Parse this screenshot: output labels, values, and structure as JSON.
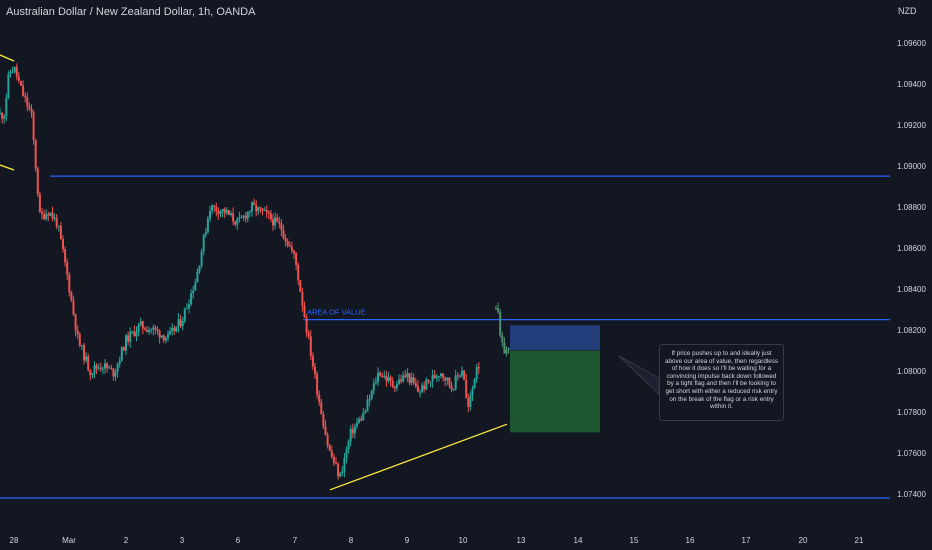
{
  "header": {
    "title": "Australian Dollar / New Zealand Dollar, 1h, OANDA",
    "currency": "NZD"
  },
  "colors": {
    "background": "#131722",
    "up_candle": "#26a69a",
    "down_candle": "#ef5350",
    "horizontal_line": "#2962ff",
    "trend_line": "#ffeb3b",
    "axis_text": "#d1d4dc",
    "target_zone": "#1e5631",
    "stop_zone": "#233d7b"
  },
  "annotations": {
    "area_label": "AREA OF VALUE",
    "note": "If price pushes up to and ideally just above our area of value, then regardless of how it does so I'll be waiting for a convincing impulse back down followed by a tight flag and then I'll be looking to get short with either a reduced risk entry on the break of the flag or a risk entry within it."
  },
  "chart_data": {
    "type": "candlestick",
    "title": "Australian Dollar / New Zealand Dollar, 1h, OANDA",
    "y_axis_label": "NZD",
    "y_ticks": [
      "1.09600",
      "1.09400",
      "1.09200",
      "1.09000",
      "1.08800",
      "1.08600",
      "1.08400",
      "1.08200",
      "1.08000",
      "1.07800",
      "1.07600",
      "1.07400"
    ],
    "ylim": [
      1.0728,
      1.0974
    ],
    "x_ticks": [
      "28",
      "Mar",
      "2",
      "3",
      "6",
      "7",
      "8",
      "9",
      "10",
      "13",
      "14",
      "15",
      "16",
      "17",
      "20",
      "21"
    ],
    "grid": false,
    "horizontal_levels": [
      1.0895,
      1.0825,
      1.0738
    ],
    "area_of_value": 1.0825,
    "trendline": {
      "from": {
        "x": "Mar 7",
        "y": 1.0742
      },
      "to": {
        "x": "Mar 10",
        "y": 1.0774
      }
    },
    "position_projection": {
      "entry": 1.081,
      "stop": 1.0822,
      "target": 1.077
    },
    "path": [
      [
        "Feb 27",
        1.0925
      ],
      [
        "Feb 27",
        1.0945
      ],
      [
        "Feb 28",
        1.0948
      ],
      [
        "Feb 28",
        1.0935
      ],
      [
        "Feb 28",
        1.0925
      ],
      [
        "Feb 28",
        1.0875
      ],
      [
        "Feb 28",
        1.0878
      ],
      [
        "Feb 28",
        1.0872
      ],
      [
        "Mar 1",
        1.085
      ],
      [
        "Mar 1",
        1.0815
      ],
      [
        "Mar 1",
        1.08
      ],
      [
        "Mar 1",
        1.0803
      ],
      [
        "Mar 1",
        1.0799
      ],
      [
        "Mar 2",
        1.0815
      ],
      [
        "Mar 2",
        1.0822
      ],
      [
        "Mar 2",
        1.082
      ],
      [
        "Mar 2",
        1.0816
      ],
      [
        "Mar 3",
        1.0825
      ],
      [
        "Mar 3",
        1.0845
      ],
      [
        "Mar 3",
        1.088
      ],
      [
        "Mar 3",
        1.0878
      ],
      [
        "Mar 6",
        1.0872
      ],
      [
        "Mar 6",
        1.088
      ],
      [
        "Mar 6",
        1.0876
      ],
      [
        "Mar 6",
        1.087
      ],
      [
        "Mar 7",
        1.0855
      ],
      [
        "Mar 7",
        1.0822
      ],
      [
        "Mar 7",
        1.079
      ],
      [
        "Mar 7",
        1.0762
      ],
      [
        "Mar 7",
        1.0748
      ],
      [
        "Mar 8",
        1.077
      ],
      [
        "Mar 8",
        1.078
      ],
      [
        "Mar 8",
        1.08
      ],
      [
        "Mar 8",
        1.0793
      ],
      [
        "Mar 9",
        1.0798
      ],
      [
        "Mar 9",
        1.079
      ],
      [
        "Mar 9",
        1.0795
      ],
      [
        "Mar 9",
        1.08
      ],
      [
        "Mar 9",
        1.0792
      ],
      [
        "Mar 10",
        1.0802
      ],
      [
        "Mar 10",
        1.078
      ],
      [
        "Mar 10",
        1.079
      ],
      [
        "Mar 10",
        1.0803
      ]
    ],
    "projection_path": [
      [
        "Mar 12",
        1.0832
      ],
      [
        "Mar 12",
        1.0812
      ],
      [
        "Mar 12",
        1.081
      ]
    ]
  }
}
